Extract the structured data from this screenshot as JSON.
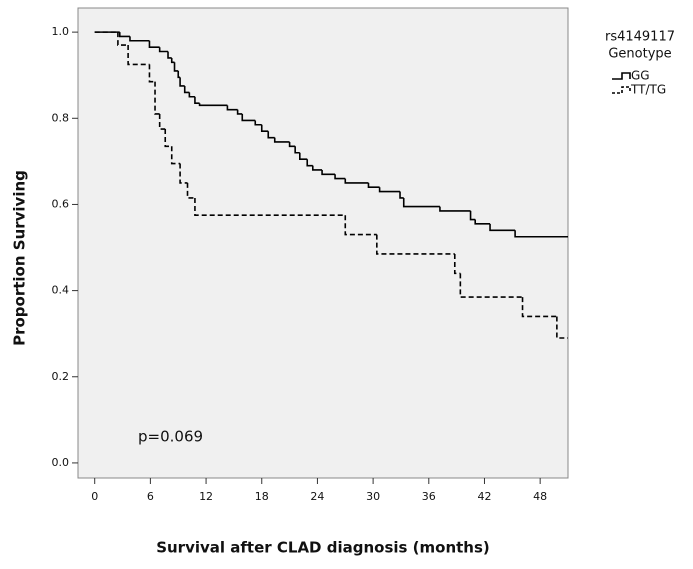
{
  "chart_data": {
    "type": "step",
    "x_label": "Survival after CLAD diagnosis (months)",
    "y_label": "Proportion Surviving",
    "annotation": "p=0.069",
    "legend_title": [
      "rs4149117",
      "Genotype"
    ],
    "xlim": [
      -1.8,
      51
    ],
    "xticks": [
      0,
      6,
      12,
      18,
      24,
      30,
      36,
      42,
      48
    ],
    "ylim": [
      -0.035,
      1.056
    ],
    "yticks": [
      {
        "value": 0,
        "label": "0.0"
      },
      0.2,
      0.4,
      0.6,
      0.8,
      {
        "value": 1,
        "label": "1.0"
      }
    ],
    "series": [
      {
        "name": "GG",
        "color": "#000000",
        "dash": false,
        "x": [
          0,
          2.7,
          3.8,
          5.9,
          7.0,
          7.9,
          8.3,
          8.6,
          9.0,
          9.2,
          9.7,
          10.2,
          10.8,
          11.3,
          14.3,
          15.4,
          15.9,
          17.3,
          18.0,
          18.7,
          19.4,
          21.0,
          21.6,
          22.1,
          22.9,
          23.5,
          24.5,
          25.9,
          27.0,
          29.5,
          30.7,
          32.9,
          33.3,
          37.2,
          40.5,
          41.0,
          42.6,
          45.3
        ],
        "values": [
          1.0,
          0.99,
          0.98,
          0.965,
          0.955,
          0.94,
          0.93,
          0.91,
          0.895,
          0.875,
          0.86,
          0.85,
          0.835,
          0.83,
          0.82,
          0.81,
          0.795,
          0.785,
          0.77,
          0.755,
          0.745,
          0.735,
          0.72,
          0.705,
          0.69,
          0.68,
          0.67,
          0.66,
          0.65,
          0.64,
          0.63,
          0.615,
          0.595,
          0.585,
          0.565,
          0.555,
          0.54,
          0.525
        ]
      },
      {
        "name": "TT/TG",
        "color": "#000000",
        "dash": true,
        "x": [
          0,
          2.5,
          3.6,
          5.9,
          6.5,
          7.0,
          7.6,
          8.3,
          9.2,
          10.0,
          10.8,
          27.0,
          30.4,
          38.8,
          39.4,
          46.1,
          49.8
        ],
        "values": [
          1.0,
          0.97,
          0.925,
          0.885,
          0.81,
          0.775,
          0.735,
          0.695,
          0.65,
          0.615,
          0.575,
          0.53,
          0.485,
          0.44,
          0.385,
          0.34,
          0.29
        ]
      }
    ]
  }
}
